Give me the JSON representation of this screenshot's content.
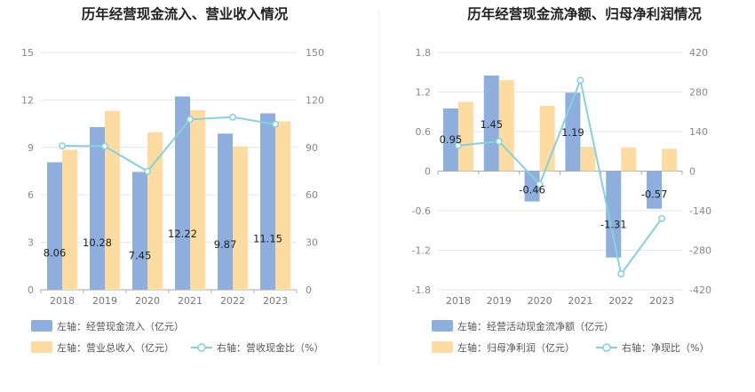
{
  "colors": {
    "bar_blue": "#8eaedd",
    "bar_orange": "#fedba0",
    "line_teal": "#83d3dc",
    "divider": "#eeeeee"
  },
  "chart_data": [
    {
      "type": "bar",
      "title": "历年经营现金流入、营业收入情况",
      "categories": [
        "2018",
        "2019",
        "2020",
        "2021",
        "2022",
        "2023"
      ],
      "left_axis": {
        "ylim": [
          0,
          15
        ],
        "ticks": [
          "0",
          "3",
          "6",
          "9",
          "12",
          "15"
        ]
      },
      "right_axis": {
        "ylim": [
          0,
          150
        ],
        "ticks": [
          "0",
          "30",
          "60",
          "90",
          "120",
          "150"
        ]
      },
      "series": [
        {
          "name": "左轴：经营现金流入（亿元）",
          "kind": "bar",
          "axis": "left",
          "values": [
            8.06,
            10.28,
            7.45,
            12.22,
            9.87,
            11.15
          ],
          "labels": [
            "8.06",
            "10.28",
            "7.45",
            "12.22",
            "9.87",
            "11.15"
          ]
        },
        {
          "name": "左轴：营业总收入（亿元）",
          "kind": "bar",
          "axis": "left",
          "values": [
            8.85,
            11.3,
            9.95,
            11.35,
            9.05,
            10.65
          ]
        },
        {
          "name": "右轴：营收现金比（%）",
          "kind": "line",
          "axis": "right",
          "values": [
            91.0,
            90.7,
            74.9,
            107.7,
            109.1,
            104.6
          ]
        }
      ],
      "legend_position": "bottom-left",
      "grid": true
    },
    {
      "type": "bar",
      "title": "历年经营现金流净额、归母净利润情况",
      "categories": [
        "2018",
        "2019",
        "2020",
        "2021",
        "2022",
        "2023"
      ],
      "left_axis": {
        "ylim": [
          -1.8,
          1.8
        ],
        "ticks": [
          "-1.8",
          "-1.2",
          "-0.6",
          "0",
          "0.6",
          "1.2",
          "1.8"
        ]
      },
      "right_axis": {
        "ylim": [
          -420,
          420
        ],
        "ticks": [
          "-420",
          "-280",
          "-140",
          "0",
          "140",
          "280",
          "420"
        ]
      },
      "series": [
        {
          "name": "左轴：经营活动现金流净额（亿元）",
          "kind": "bar",
          "axis": "left",
          "values": [
            0.95,
            1.45,
            -0.46,
            1.19,
            -1.31,
            -0.57
          ],
          "labels": [
            "0.95",
            "1.45",
            "-0.46",
            "1.19",
            "-1.31",
            "-0.57"
          ]
        },
        {
          "name": "左轴：归母净利润（亿元）",
          "kind": "bar",
          "axis": "left",
          "values": [
            1.05,
            1.38,
            0.99,
            0.37,
            0.36,
            0.34
          ]
        },
        {
          "name": "右轴：净现比（%）",
          "kind": "line",
          "axis": "right",
          "values": [
            90.5,
            105.1,
            -46.5,
            321.6,
            -363.9,
            -167.6
          ]
        }
      ],
      "legend_position": "bottom-left",
      "grid": true
    }
  ]
}
